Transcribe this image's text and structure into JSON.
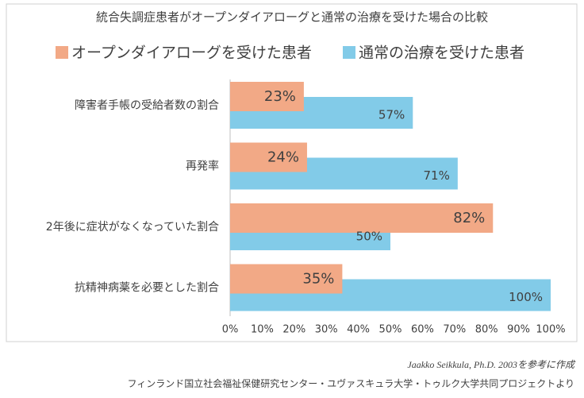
{
  "chart_data": {
    "type": "hbar",
    "title": "統合失調症患者がオープンダイアローグと通常の治療を受けた場合の比較",
    "categories": [
      "障害者手帳の受給者数の割合",
      "再発率",
      "2年後に症状がなくなっていた割合",
      "抗精神病薬を必要とした割合"
    ],
    "series": [
      {
        "name": "オープンダイアローグを受けた患者",
        "color": "#f2a986",
        "values": [
          23,
          24,
          82,
          35
        ],
        "value_labels": [
          "23%",
          "24%",
          "82%",
          "35%"
        ]
      },
      {
        "name": "通常の治療を受けた患者",
        "color": "#82cbe8",
        "values": [
          57,
          71,
          50,
          100
        ],
        "value_labels": [
          "57%",
          "71%",
          "50%",
          "100%"
        ]
      }
    ],
    "xlim": [
      0,
      100
    ],
    "xticks": [
      {
        "value": 0,
        "label": "0%"
      },
      {
        "value": 10,
        "label": "10%"
      },
      {
        "value": 20,
        "label": "20%"
      },
      {
        "value": 30,
        "label": "30%"
      },
      {
        "value": 40,
        "label": "40%"
      },
      {
        "value": 50,
        "label": "50%"
      },
      {
        "value": 60,
        "label": "60%"
      },
      {
        "value": 70,
        "label": "70%"
      },
      {
        "value": 80,
        "label": "80%"
      },
      {
        "value": 90,
        "label": "90%"
      },
      {
        "value": 100,
        "label": "100%"
      }
    ],
    "grid": false,
    "legend": "top"
  },
  "source": [
    "Jaakko Seikkula, Ph.D. 2003を参考に作成",
    "フィンランド国立社会福祉保健研究センター・ユヴァスキュラ大学・トゥルク大学共同プロジェクトより"
  ]
}
